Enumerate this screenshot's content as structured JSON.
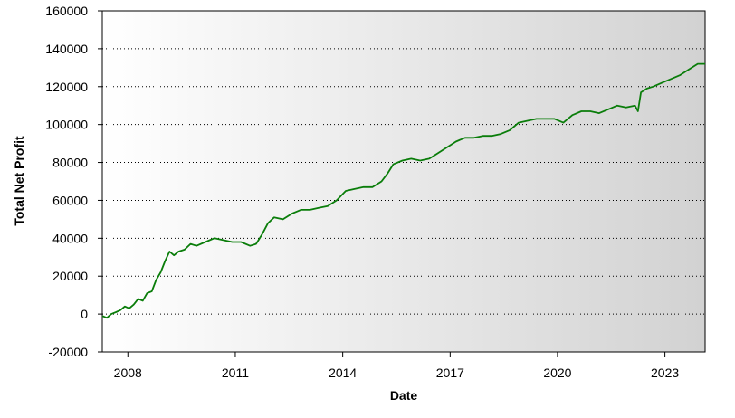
{
  "chart_data": {
    "type": "line",
    "title": "",
    "xlabel": "Date",
    "ylabel": "Total Net Profit",
    "x_ticks": [
      "2008",
      "2011",
      "2014",
      "2017",
      "2020",
      "2023"
    ],
    "y_ticks": [
      "160000",
      "140000",
      "120000",
      "100000",
      "80000",
      "60000",
      "40000",
      "20000",
      "0",
      "-20000"
    ],
    "ylim": [
      -20000,
      160000
    ],
    "xlim": [
      "2007-04-15",
      "2024-02-15"
    ],
    "grid": "horizontal dotted",
    "legend": "none",
    "colors": {
      "series": "#0a7d0a",
      "plot_bg_left": "#ffffff",
      "plot_bg_right": "#d2d2d2"
    },
    "series": [
      {
        "x": [
          "2007-04-15",
          "2007-06-01",
          "2007-07-15",
          "2007-09-01",
          "2007-10-15",
          "2007-12-01",
          "2008-01-15",
          "2008-03-01",
          "2008-04-15",
          "2008-06-01",
          "2008-07-15",
          "2008-09-01",
          "2008-10-15",
          "2008-12-01",
          "2009-01-15",
          "2009-03-01",
          "2009-04-15",
          "2009-06-01",
          "2009-08-01",
          "2009-10-01",
          "2009-12-01",
          "2010-03-01",
          "2010-06-01",
          "2010-09-01",
          "2010-12-01",
          "2011-03-01",
          "2011-06-01",
          "2011-08-01",
          "2011-10-01",
          "2011-12-01",
          "2012-02-01",
          "2012-05-01",
          "2012-08-01",
          "2012-11-01",
          "2013-02-01",
          "2013-05-01",
          "2013-08-01",
          "2013-11-01",
          "2014-02-01",
          "2014-05-01",
          "2014-08-01",
          "2014-11-01",
          "2015-02-01",
          "2015-04-01",
          "2015-06-01",
          "2015-09-01",
          "2015-12-01",
          "2016-03-01",
          "2016-06-01",
          "2016-09-01",
          "2016-12-01",
          "2017-03-01",
          "2017-06-01",
          "2017-09-01",
          "2017-12-01",
          "2018-03-01",
          "2018-06-01",
          "2018-09-01",
          "2018-12-01",
          "2019-03-01",
          "2019-06-01",
          "2019-09-01",
          "2019-12-01",
          "2020-03-01",
          "2020-06-01",
          "2020-09-01",
          "2020-12-01",
          "2021-03-01",
          "2021-06-01",
          "2021-09-01",
          "2021-12-01",
          "2022-03-01",
          "2022-04-01",
          "2022-05-01",
          "2022-07-01",
          "2022-09-01",
          "2022-12-01",
          "2023-03-01",
          "2023-06-01",
          "2023-09-01",
          "2023-12-01",
          "2024-02-15"
        ],
        "y": [
          -1000,
          -2000,
          0,
          1000,
          2000,
          4000,
          3000,
          5000,
          8000,
          7000,
          11000,
          12000,
          18000,
          22000,
          28000,
          33000,
          31000,
          33000,
          34000,
          37000,
          36000,
          38000,
          40000,
          39000,
          38000,
          38000,
          36000,
          37000,
          42000,
          48000,
          51000,
          50000,
          53000,
          55000,
          55000,
          56000,
          57000,
          60000,
          65000,
          66000,
          67000,
          67000,
          70000,
          74000,
          79000,
          81000,
          82000,
          81000,
          82000,
          85000,
          88000,
          91000,
          93000,
          93000,
          94000,
          94000,
          95000,
          97000,
          101000,
          102000,
          103000,
          103000,
          103000,
          101000,
          105000,
          107000,
          107000,
          106000,
          108000,
          110000,
          109000,
          110000,
          107000,
          117000,
          119000,
          120000,
          122000,
          124000,
          126000,
          129000,
          132000,
          132000
        ]
      }
    ]
  }
}
